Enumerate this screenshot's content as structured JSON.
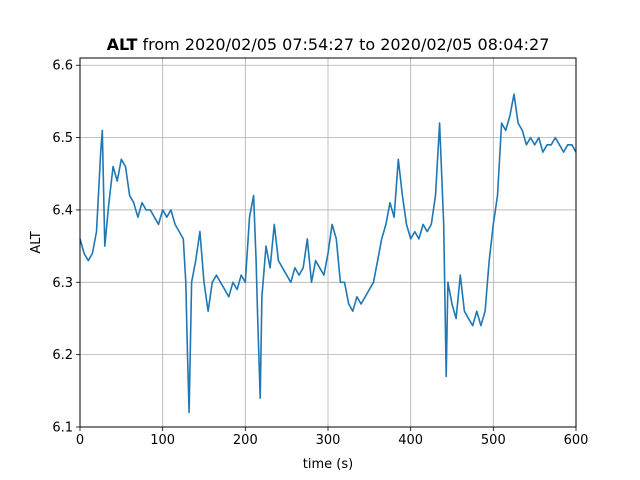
{
  "chart_data": {
    "type": "line",
    "title": {
      "bold": "ALT",
      "rest": " from 2020/02/05 07:54:27 to 2020/02/05 08:04:27"
    },
    "xlabel": "time (s)",
    "ylabel": "ALT",
    "xlim": [
      0,
      600
    ],
    "ylim": [
      6.1,
      6.61
    ],
    "xticks": [
      0,
      100,
      200,
      300,
      400,
      500,
      600
    ],
    "xtick_labels": [
      "0",
      "100",
      "200",
      "300",
      "400",
      "500",
      "600"
    ],
    "yticks": [
      6.1,
      6.2,
      6.3,
      6.4,
      6.5,
      6.6
    ],
    "ytick_labels": [
      "6.1",
      "6.2",
      "6.3",
      "6.4",
      "6.5",
      "6.6"
    ],
    "grid": true,
    "color": "#1f77b4",
    "series": [
      {
        "x": [
          0,
          5,
          10,
          15,
          20,
          25,
          27,
          30,
          35,
          40,
          45,
          50,
          55,
          60,
          65,
          70,
          75,
          80,
          85,
          90,
          95,
          100,
          105,
          110,
          115,
          120,
          125,
          128,
          130,
          132,
          135,
          140,
          145,
          150,
          155,
          160,
          165,
          170,
          175,
          180,
          185,
          190,
          195,
          200,
          205,
          210,
          213,
          215,
          218,
          220,
          225,
          230,
          235,
          240,
          245,
          250,
          255,
          260,
          265,
          270,
          275,
          280,
          285,
          290,
          295,
          300,
          305,
          310,
          315,
          320,
          325,
          330,
          335,
          340,
          345,
          350,
          355,
          360,
          365,
          370,
          375,
          380,
          385,
          390,
          395,
          400,
          405,
          410,
          415,
          420,
          425,
          430,
          435,
          440,
          443,
          445,
          450,
          455,
          460,
          465,
          470,
          475,
          480,
          485,
          490,
          495,
          500,
          505,
          510,
          515,
          520,
          525,
          530,
          535,
          540,
          545,
          550,
          555,
          560,
          565,
          570,
          575,
          580,
          585,
          590,
          595,
          600
        ],
        "y": [
          6.36,
          6.34,
          6.33,
          6.34,
          6.37,
          6.48,
          6.51,
          6.35,
          6.41,
          6.46,
          6.44,
          6.47,
          6.46,
          6.42,
          6.41,
          6.39,
          6.41,
          6.4,
          6.4,
          6.39,
          6.38,
          6.4,
          6.39,
          6.4,
          6.38,
          6.37,
          6.36,
          6.3,
          6.2,
          6.12,
          6.3,
          6.33,
          6.37,
          6.3,
          6.26,
          6.3,
          6.31,
          6.3,
          6.29,
          6.28,
          6.3,
          6.29,
          6.31,
          6.3,
          6.39,
          6.42,
          6.33,
          6.25,
          6.14,
          6.28,
          6.35,
          6.32,
          6.38,
          6.33,
          6.32,
          6.31,
          6.3,
          6.32,
          6.31,
          6.32,
          6.36,
          6.3,
          6.33,
          6.32,
          6.31,
          6.34,
          6.38,
          6.36,
          6.3,
          6.3,
          6.27,
          6.26,
          6.28,
          6.27,
          6.28,
          6.29,
          6.3,
          6.33,
          6.36,
          6.38,
          6.41,
          6.39,
          6.47,
          6.42,
          6.38,
          6.36,
          6.37,
          6.36,
          6.38,
          6.37,
          6.38,
          6.42,
          6.52,
          6.38,
          6.17,
          6.3,
          6.27,
          6.25,
          6.31,
          6.26,
          6.25,
          6.24,
          6.26,
          6.24,
          6.26,
          6.33,
          6.38,
          6.42,
          6.52,
          6.51,
          6.53,
          6.56,
          6.52,
          6.51,
          6.49,
          6.5,
          6.49,
          6.5,
          6.48,
          6.49,
          6.49,
          6.5,
          6.49,
          6.48,
          6.49,
          6.49,
          6.48
        ]
      }
    ]
  }
}
